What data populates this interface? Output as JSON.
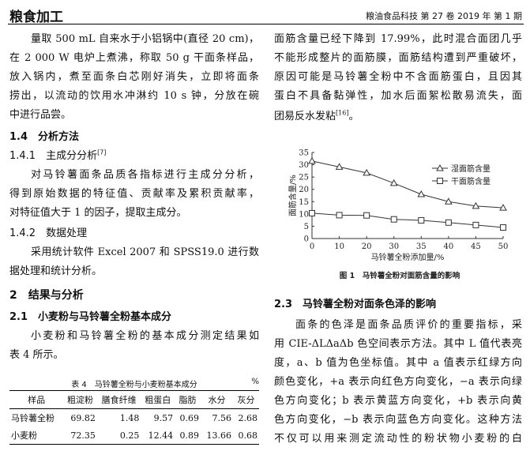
{
  "header": {
    "section": "粮食加工",
    "journal": "粮油食品科技 第 27 卷 2019 年 第 1 期"
  },
  "left": {
    "p1": [
      "量取 500 mL 自来水于小铝锅中(直径 20 cm)，",
      "在 2 000 W 电炉上煮沸，称取 50 g 干面条样品，",
      "放入锅内，煮至面条白芯刚好消失，立即将面条",
      "捞出，以流动的饮用水冲淋约 10 s 钟，分放在碗",
      "中进行品尝。"
    ],
    "h14": "1.4　分析方法",
    "h141": "1.4.1　主成分分析",
    "h141_ref": "[7]",
    "p2": [
      "对马铃薯面条品质各指标进行主成分分析，",
      "得到原始数据的特征值、贡献率及累积贡献率，",
      "对特征值大于 1 的因子，提取主成分。"
    ],
    "h142": "1.4.2　数据处理",
    "p3": [
      "采用统计软件 Excel 2007 和 SPSS19.0 进行数",
      "据处理和统计分析。"
    ],
    "h2": "2　结果与分析",
    "h21": "2.1　小麦粉与马铃薯全粉基本成分",
    "p4": [
      "小麦粉和马铃薯全粉的基本成分测定结果如",
      "表 4 所示。"
    ]
  },
  "table": {
    "caption": "表 4　马铃薯全粉与小麦粉基本成分",
    "unit": "%",
    "headers": [
      "样品",
      "粗淀粉",
      "膳食纤维",
      "粗蛋白",
      "脂肪",
      "水分",
      "灰分"
    ],
    "rows": [
      [
        "马铃薯全粉",
        "69.82",
        "1.48",
        "9.57",
        "0.69",
        "7.56",
        "2.68"
      ],
      [
        "小麦粉",
        "72.35",
        "0.25",
        "12.44",
        "0.89",
        "13.66",
        "0.68"
      ]
    ]
  },
  "right": {
    "p1": [
      "面筋含量已经下降到 17.99%，此时混合面团几乎",
      "不能形成整片的面筋膜，面筋结构遭到严重破坏，",
      "原因可能是马铃薯全粉中不含面筋蛋白，且因其",
      "蛋白不具备黏弹性，加水后面絮松散易流失，面"
    ],
    "p1_last": "团易反水发粘",
    "p1_ref": "[16]",
    "p1_end": "。",
    "h23": "2.3　马铃薯全粉对面条色泽的影响",
    "p2": [
      "面条的色泽是面条品质评价的重要指标，采",
      "用 CIE-ΔLΔaΔb 色空间表示方法。其中 L 值代表亮",
      "度，a、b 值为色坐标值。其中 a 值表示红绿方向",
      "颜色变化，+a 表示向红色方向变化，−a 表示向绿",
      "色方向变化；b 表示黄蓝方向变化，+b 表示向黄",
      "色方向变化，−b 表示向蓝色方向变化。这种方法",
      "不仅可以用来测定流动性的粉状物小麦粉的白"
    ]
  },
  "chart_data": {
    "type": "line",
    "title": "图 1　马铃薯全粉对面筋含量的影响",
    "xlabel": "马铃薯全粉添加量/%",
    "ylabel": "面筋含量/%",
    "categories": [
      "0",
      "10",
      "20",
      "30",
      "35",
      "40",
      "45",
      "50"
    ],
    "ylim": [
      0,
      35
    ],
    "yticks": [
      0,
      5,
      10,
      15,
      20,
      25,
      30,
      35
    ],
    "legend": "top-right",
    "grid": false,
    "series": [
      {
        "name": "湿面筋含量",
        "marker": "triangle",
        "values": [
          31.5,
          29.1,
          26.7,
          22.5,
          17.99,
          15.0,
          13.2,
          12.5
        ]
      },
      {
        "name": "干面筋含量",
        "marker": "square",
        "values": [
          10.3,
          9.5,
          9.4,
          7.8,
          7.4,
          6.5,
          5.5,
          4.5
        ]
      }
    ]
  }
}
